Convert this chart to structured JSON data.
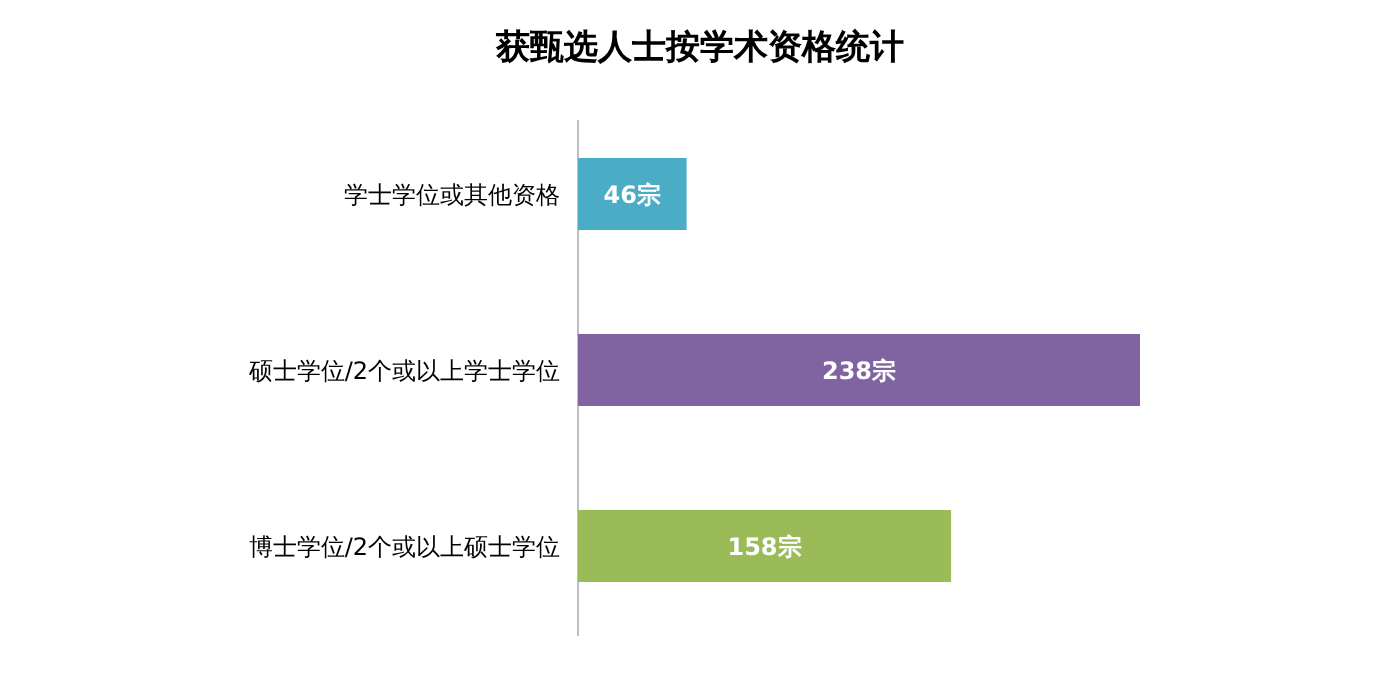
{
  "chart_data": {
    "type": "bar",
    "orientation": "horizontal",
    "title": "获甄选人士按学术资格统计",
    "categories": [
      "学士学位或其他资格",
      "硕士学位/2个或以上学士学位",
      "博士学位/2个或以上硕士学位"
    ],
    "values": [
      46,
      238,
      158
    ],
    "colors": [
      "#4bacc6",
      "#8064a2",
      "#9bbb59"
    ],
    "value_labels": [
      "46宗",
      "238宗",
      "158宗"
    ]
  }
}
